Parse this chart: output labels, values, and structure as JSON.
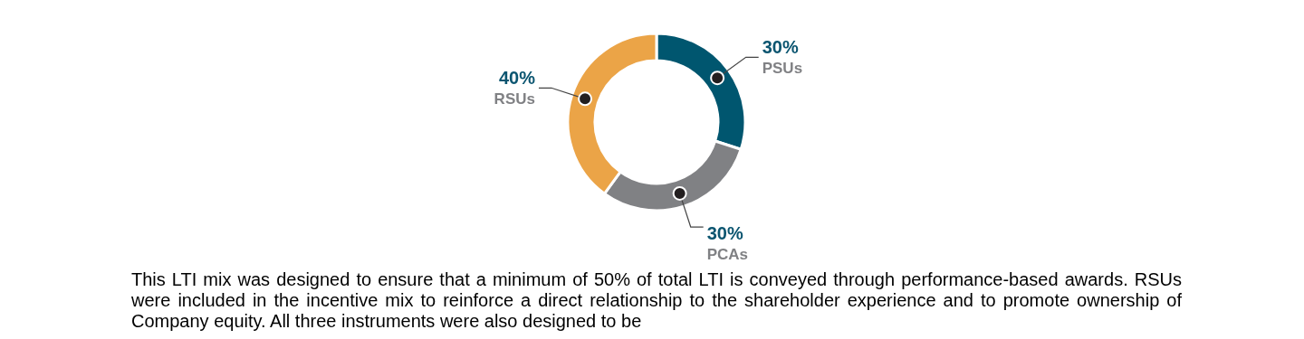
{
  "chart_data": {
    "type": "donut",
    "categories": [
      "PSUs",
      "PCAs",
      "RSUs"
    ],
    "values": [
      30,
      30,
      40
    ],
    "colors": [
      "#00566f",
      "#808184",
      "#eba447"
    ],
    "value_labels": [
      "30%",
      "30%",
      "40%"
    ],
    "annotations": [
      "This LTI mix was designed to ensure that a minimum of 50% of total LTI is conveyed through performance-based awards. RSUs were included in the incentive mix to reinforce a direct relationship to the shareholder experience and to promote ownership of Company equity. All three instruments were also designed to be"
    ]
  }
}
